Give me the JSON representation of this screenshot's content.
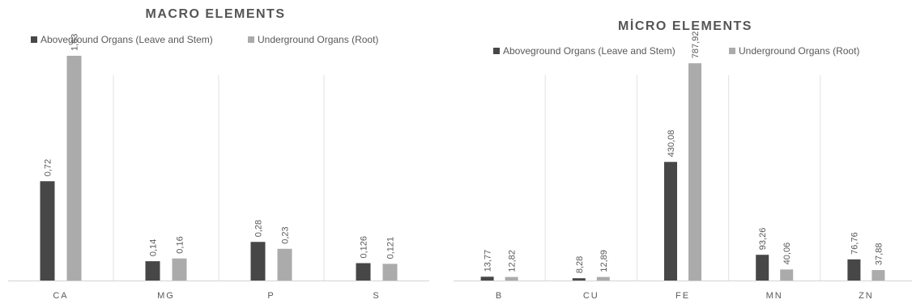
{
  "colors": {
    "above": "#474747",
    "under": "#ababab",
    "axis": "#d4d4d4",
    "divider": "#e2e2e2",
    "text": "#595959",
    "title": "#555555"
  },
  "chart_data": [
    {
      "type": "bar",
      "title": "MACRO ELEMENTS",
      "categories": [
        "CA",
        "MG",
        "P",
        "S"
      ],
      "series": [
        {
          "name": "Aboveground Organs (Leave and Stem)",
          "values": [
            0.72,
            0.14,
            0.28,
            0.126
          ],
          "labels": [
            "0,72",
            "0,14",
            "0,28",
            "0,126"
          ]
        },
        {
          "name": "Underground Organs (Root)",
          "values": [
            1.63,
            0.16,
            0.23,
            0.121
          ],
          "labels": [
            "1,63",
            "0,16",
            "0,23",
            "0,121"
          ]
        }
      ],
      "ylim": [
        0,
        1.8
      ],
      "legend": "top",
      "grid": false
    },
    {
      "type": "bar",
      "title": "MİCRO ELEMENTS",
      "categories": [
        "B",
        "CU",
        "FE",
        "MN",
        "ZN"
      ],
      "series": [
        {
          "name": "Aboveground Organs (Leave and Stem)",
          "values": [
            13.77,
            8.28,
            430.08,
            93.26,
            76.76
          ],
          "labels": [
            "13,77",
            "8,28",
            "430,08",
            "93,26",
            "76,76"
          ]
        },
        {
          "name": "Underground Organs (Root)",
          "values": [
            12.82,
            12.89,
            787.92,
            40.06,
            37.88
          ],
          "labels": [
            "12,82",
            "12,89",
            "787,92",
            "40,06",
            "37,88"
          ]
        }
      ],
      "ylim": [
        0,
        900
      ],
      "legend": "top",
      "grid": false
    }
  ]
}
